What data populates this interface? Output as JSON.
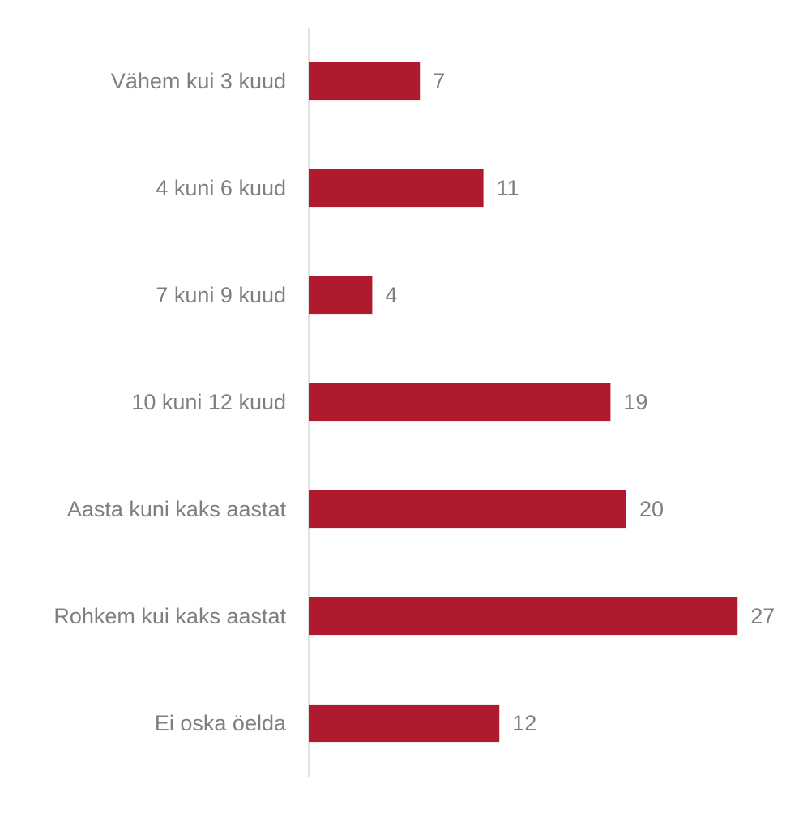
{
  "chart_data": {
    "type": "bar",
    "orientation": "horizontal",
    "categories": [
      "Vähem kui 3 kuud",
      "4 kuni 6 kuud",
      "7 kuni 9 kuud",
      "10 kuni 12 kuud",
      "Aasta kuni kaks aastat",
      "Rohkem kui kaks aastat",
      "Ei oska öelda"
    ],
    "values": [
      7,
      11,
      4,
      19,
      20,
      27,
      12
    ],
    "color": "#b01a2e",
    "xlim": [
      0,
      30
    ],
    "xticks": [
      0,
      5,
      10,
      15,
      20,
      25,
      30
    ],
    "grid": false
  }
}
